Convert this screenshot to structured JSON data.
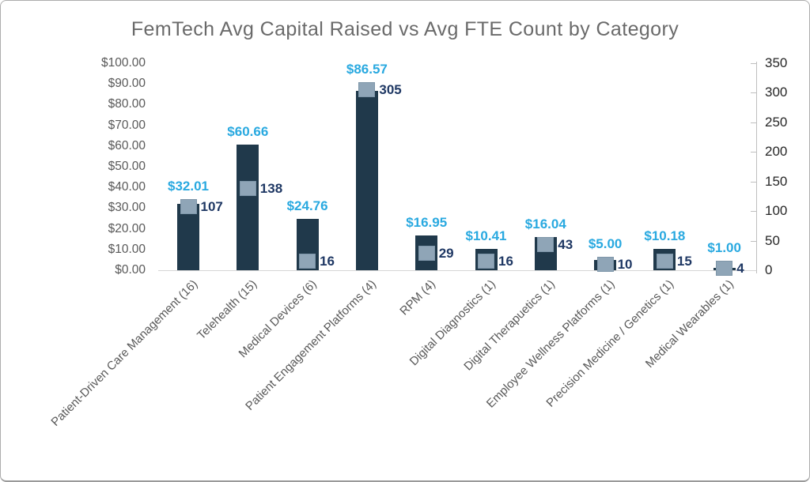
{
  "chart_data": {
    "type": "bar",
    "subtype": "combo-bar-with-scatter-markers",
    "title": "FemTech Avg Capital Raised vs Avg FTE Count by Category",
    "grid": "off",
    "legend": "none",
    "categories": [
      "Patient-Driven Care Management (16)",
      "Telehealth (15)",
      "Medical Devices (6)",
      "Patient Engagement Platforms (4)",
      "RPM (4)",
      "Digital Diagnostics (1)",
      "Digital Therapuetics (1)",
      "Employee Wellness Platforms (1)",
      "Precision Medicine / Genetics (1)",
      "Medical Wearables (1)"
    ],
    "series": [
      {
        "name": "Avg Capital Raised",
        "type": "bar",
        "axis": "left",
        "values": [
          32.01,
          60.66,
          24.76,
          86.57,
          16.95,
          10.41,
          16.04,
          5.0,
          10.18,
          1.0
        ],
        "labels": [
          "$32.01",
          "$60.66",
          "$24.76",
          "$86.57",
          "$16.95",
          "$10.41",
          "$16.04",
          "$5.00",
          "$10.18",
          "$1.00"
        ],
        "bar_color": "#20394b",
        "label_color": "#29a9e0"
      },
      {
        "name": "Avg FTE Count",
        "type": "scatter",
        "axis": "right",
        "values": [
          107,
          138,
          16,
          305,
          29,
          16,
          43,
          10,
          15,
          4
        ],
        "labels": [
          "107",
          "138",
          "16",
          "305",
          "29",
          "16",
          "43",
          "10",
          "15",
          "4"
        ],
        "marker_color": "#8fa5b7",
        "label_color": "#1f3864"
      }
    ],
    "left_axis": {
      "min": 0,
      "max": 100,
      "ticks": [
        "$100.00",
        "$90.00",
        "$80.00",
        "$70.00",
        "$60.00",
        "$50.00",
        "$40.00",
        "$30.00",
        "$20.00",
        "$10.00",
        "$0.00"
      ],
      "tick_values": [
        100,
        90,
        80,
        70,
        60,
        50,
        40,
        30,
        20,
        10,
        0
      ],
      "text_color": "#595959"
    },
    "right_axis": {
      "min": 0,
      "max": 350,
      "ticks": [
        "350",
        "300",
        "250",
        "200",
        "150",
        "100",
        "50",
        "0"
      ],
      "tick_values": [
        350,
        300,
        250,
        200,
        150,
        100,
        50,
        0
      ],
      "text_color": "#262626",
      "line_color": "#bfbfbf"
    },
    "title_color": "#6a6a6a",
    "category_text_color": "#595959"
  }
}
